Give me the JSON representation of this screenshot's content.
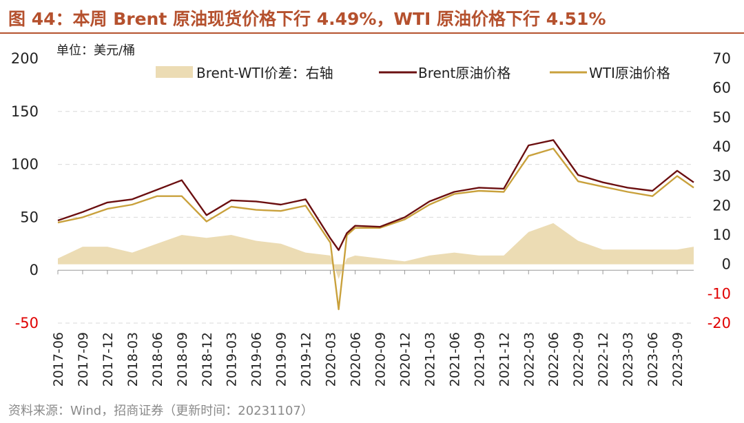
{
  "title": "图 44：本周 Brent 原油现货价格下行 4.49%，WTI 原油价格下行 4.51%",
  "source": "资料来源：Wind，招商证券（更新时间：20231107）",
  "colors": {
    "brent": "#6b0f10",
    "wti": "#c9a13c",
    "spread": "#ecdcb4",
    "negative_tick": "#e00000",
    "title": "#b5512e"
  },
  "chart_data": {
    "type": "line",
    "unit": "单位：美元/桶",
    "legend_position": "top",
    "grid": true,
    "ylim": [
      -50,
      200
    ],
    "y_ticks": [
      -50,
      0,
      50,
      100,
      150,
      200
    ],
    "y2lim": [
      -20,
      70
    ],
    "y2_ticks": [
      -20,
      -10,
      0,
      10,
      20,
      30,
      40,
      50,
      60,
      70
    ],
    "x_range": [
      "2017-06",
      "2023-11"
    ],
    "x_ticks": [
      "2017-06",
      "2017-09",
      "2017-12",
      "2018-03",
      "2018-06",
      "2018-09",
      "2018-12",
      "2019-03",
      "2019-06",
      "2019-09",
      "2019-12",
      "2020-03",
      "2020-06",
      "2020-09",
      "2020-12",
      "2021-03",
      "2021-06",
      "2021-09",
      "2021-12",
      "2022-03",
      "2022-06",
      "2022-09",
      "2022-12",
      "2023-03",
      "2023-06",
      "2023-09"
    ],
    "series": [
      {
        "name": "Brent-WTI价差：右轴",
        "type": "area",
        "axis": "right",
        "x": [
          "2017-06",
          "2017-09",
          "2017-12",
          "2018-03",
          "2018-06",
          "2018-09",
          "2018-12",
          "2019-03",
          "2019-06",
          "2019-09",
          "2019-12",
          "2020-03",
          "2020-04",
          "2020-05",
          "2020-06",
          "2020-09",
          "2020-12",
          "2021-03",
          "2021-06",
          "2021-09",
          "2021-12",
          "2022-03",
          "2022-06",
          "2022-09",
          "2022-12",
          "2023-03",
          "2023-06",
          "2023-09",
          "2023-11"
        ],
        "values": [
          2,
          6,
          6,
          4,
          7,
          10,
          9,
          10,
          8,
          7,
          4,
          3,
          -5,
          2,
          3,
          2,
          1,
          3,
          4,
          3,
          3,
          11,
          14,
          8,
          5,
          5,
          5,
          5,
          6
        ]
      },
      {
        "name": "Brent原油价格",
        "type": "line",
        "axis": "left",
        "x": [
          "2017-06",
          "2017-09",
          "2017-12",
          "2018-03",
          "2018-06",
          "2018-09",
          "2018-12",
          "2019-03",
          "2019-06",
          "2019-09",
          "2019-12",
          "2020-03",
          "2020-04",
          "2020-05",
          "2020-06",
          "2020-09",
          "2020-12",
          "2021-03",
          "2021-06",
          "2021-09",
          "2021-12",
          "2022-03",
          "2022-06",
          "2022-09",
          "2022-12",
          "2023-03",
          "2023-06",
          "2023-09",
          "2023-11"
        ],
        "values": [
          47,
          55,
          64,
          67,
          76,
          85,
          52,
          66,
          65,
          62,
          67,
          30,
          19,
          35,
          42,
          41,
          50,
          65,
          74,
          78,
          77,
          118,
          123,
          90,
          83,
          78,
          75,
          94,
          83
        ]
      },
      {
        "name": "WTI原油价格",
        "type": "line",
        "axis": "left",
        "x": [
          "2017-06",
          "2017-09",
          "2017-12",
          "2018-03",
          "2018-06",
          "2018-09",
          "2018-12",
          "2019-03",
          "2019-06",
          "2019-09",
          "2019-12",
          "2020-03",
          "2020-04",
          "2020-05",
          "2020-06",
          "2020-09",
          "2020-12",
          "2021-03",
          "2021-06",
          "2021-09",
          "2021-12",
          "2022-03",
          "2022-06",
          "2022-09",
          "2022-12",
          "2023-03",
          "2023-06",
          "2023-09",
          "2023-11"
        ],
        "values": [
          45,
          50,
          58,
          62,
          70,
          70,
          46,
          60,
          57,
          56,
          61,
          26,
          -37,
          33,
          40,
          40,
          48,
          62,
          72,
          75,
          74,
          108,
          115,
          84,
          79,
          74,
          70,
          89,
          78
        ]
      }
    ]
  }
}
